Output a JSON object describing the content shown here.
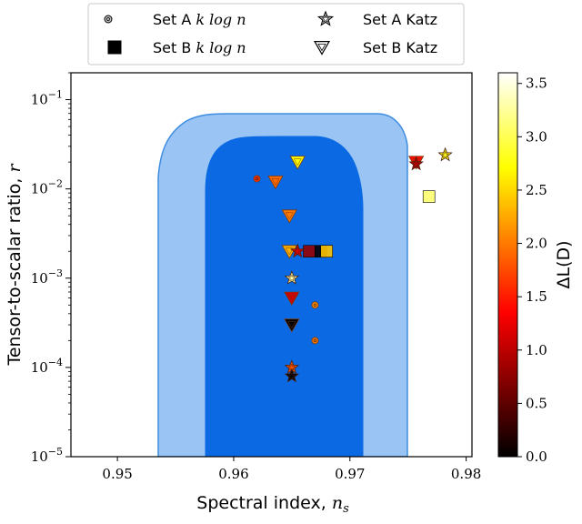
{
  "chart_data": {
    "type": "scatter",
    "title": "",
    "xlabel": "Spectral index, ",
    "xlabel_math": "n",
    "xlabel_math_sub": "s",
    "ylabel": "Tensor-to-scalar ratio, ",
    "ylabel_math": "r",
    "xlim": [
      0.946,
      0.9805
    ],
    "ylim": [
      1e-05,
      0.2
    ],
    "yscale": "log",
    "x_ticks": [
      0.95,
      0.96,
      0.97,
      0.98
    ],
    "x_tick_labels": [
      "0.95",
      "0.96",
      "0.97",
      "0.98"
    ],
    "y_ticks": [
      -5,
      -4,
      -3,
      -2,
      -1
    ],
    "y_tick_base": "10",
    "grid": false,
    "legend": {
      "placement": "top",
      "entries": [
        {
          "prefix": "Set A ",
          "math": "k log n",
          "marker": "circle"
        },
        {
          "prefix": "Set A Katz",
          "math": "",
          "marker": "star"
        },
        {
          "prefix": "Set B ",
          "math": "k log n",
          "marker": "square"
        },
        {
          "prefix": "Set B Katz",
          "math": "",
          "marker": "triangle-down"
        }
      ]
    },
    "contours": [
      {
        "level": "2-sigma",
        "color": "#99c4f4",
        "edge": "#3f8de0"
      },
      {
        "level": "1-sigma",
        "color": "#0b6ae3",
        "edge": "#0b6ae3"
      }
    ],
    "colorbar": {
      "label": "ΔL(D)",
      "range": [
        0,
        3.6
      ],
      "ticks": [
        "0.0",
        "0.5",
        "1.0",
        "1.5",
        "2.0",
        "2.5",
        "3.0",
        "3.5"
      ],
      "colormap": "hot"
    },
    "series": [
      {
        "name": "Set A k log n",
        "marker": "circle",
        "points": [
          {
            "x": 0.962,
            "y": 0.013,
            "c": 1.6
          },
          {
            "x": 0.967,
            "y": 0.0005,
            "c": 2.1
          },
          {
            "x": 0.967,
            "y": 0.0002,
            "c": 2.0
          }
        ]
      },
      {
        "name": "Set B k log n",
        "marker": "square",
        "points": [
          {
            "x": 0.9665,
            "y": 0.002,
            "c": 0.8
          },
          {
            "x": 0.9675,
            "y": 0.002,
            "c": 0.05
          },
          {
            "x": 0.968,
            "y": 0.002,
            "c": 2.4
          },
          {
            "x": 0.9768,
            "y": 0.0082,
            "c": 3.1
          }
        ]
      },
      {
        "name": "Set A Katz",
        "marker": "star",
        "points": [
          {
            "x": 0.9655,
            "y": 0.002,
            "c": 1.2
          },
          {
            "x": 0.9757,
            "y": 0.019,
            "c": 1.0
          },
          {
            "x": 0.9782,
            "y": 0.024,
            "c": 2.8
          },
          {
            "x": 0.965,
            "y": 0.001,
            "c": 3.3
          },
          {
            "x": 0.965,
            "y": 0.0001,
            "c": 1.8
          },
          {
            "x": 0.965,
            "y": 8e-05,
            "c": 0.0
          }
        ]
      },
      {
        "name": "Set B Katz",
        "marker": "triangle-down",
        "points": [
          {
            "x": 0.9655,
            "y": 0.02,
            "c": 2.7
          },
          {
            "x": 0.9636,
            "y": 0.012,
            "c": 1.9
          },
          {
            "x": 0.9648,
            "y": 0.005,
            "c": 2.0
          },
          {
            "x": 0.9648,
            "y": 0.002,
            "c": 2.3
          },
          {
            "x": 0.9757,
            "y": 0.02,
            "c": 1.4
          },
          {
            "x": 0.965,
            "y": 0.0006,
            "c": 1.1
          },
          {
            "x": 0.965,
            "y": 0.0003,
            "c": 0.0
          }
        ]
      }
    ]
  }
}
